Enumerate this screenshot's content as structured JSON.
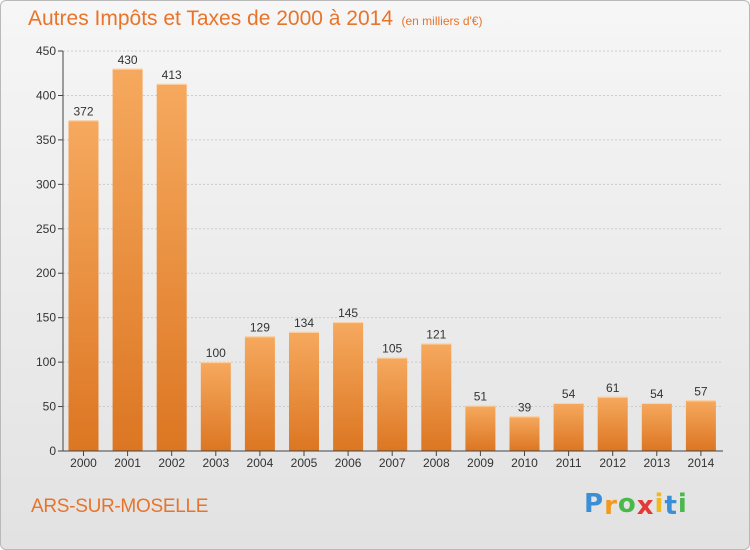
{
  "title": "Autres Impôts et Taxes de 2000 à 2014",
  "unit_note": "(en milliers d'€)",
  "commune": "ARS-SUR-MOSELLE",
  "logo": {
    "letters": [
      "P",
      "r",
      "o",
      "x",
      "i",
      "t",
      "i"
    ],
    "colors": [
      "#3b8fd6",
      "#f29a1f",
      "#4bb84b",
      "#e53935",
      "#f2b81f",
      "#3b8fd6",
      "#4bb84b"
    ]
  },
  "colors": {
    "accent": "#e8742a",
    "bar_light": "#f6a95e",
    "bar_dark": "#dc7622",
    "grid": "#cccccc",
    "axis": "#444444"
  },
  "chart_data": {
    "type": "bar",
    "title": "Autres Impôts et Taxes de 2000 à 2014",
    "xlabel": "",
    "ylabel": "",
    "categories": [
      "2000",
      "2001",
      "2002",
      "2003",
      "2004",
      "2005",
      "2006",
      "2007",
      "2008",
      "2009",
      "2010",
      "2011",
      "2012",
      "2013",
      "2014"
    ],
    "values": [
      372,
      430,
      413,
      100,
      129,
      134,
      145,
      105,
      121,
      51,
      39,
      54,
      61,
      54,
      57
    ],
    "ylim": [
      0,
      450
    ],
    "yticks": [
      0,
      50,
      100,
      150,
      200,
      250,
      300,
      350,
      400,
      450
    ],
    "grid": true,
    "legend": "none"
  }
}
